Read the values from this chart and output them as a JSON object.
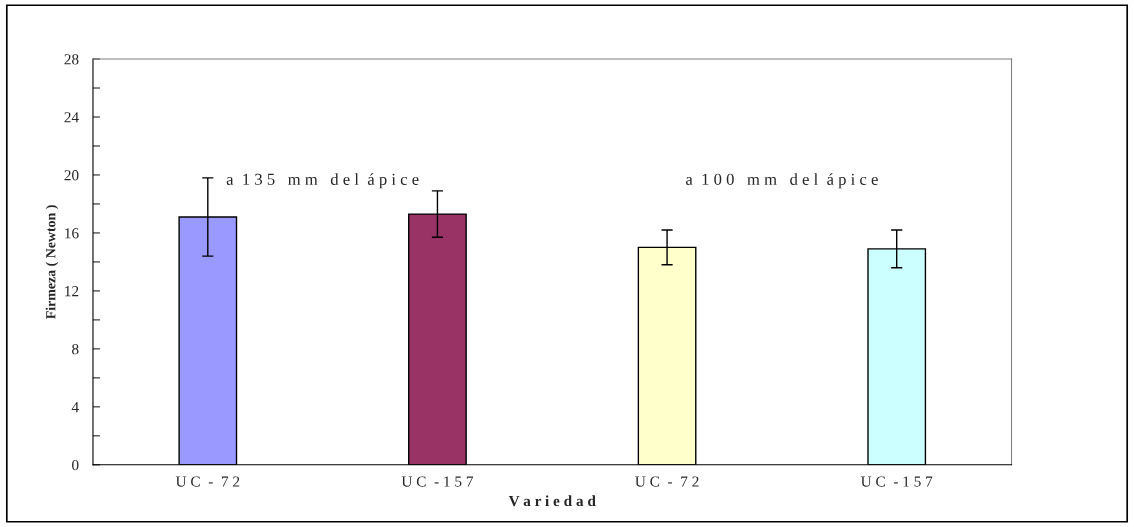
{
  "chart_data": {
    "type": "bar",
    "xlabel": "V a r i e d a d",
    "ylabel": "Firmeza ( Newton )",
    "categories": [
      "U C  -  7 2",
      "U C  - 1 5 7",
      "U C  -  7 2",
      "U C  - 1 5 7"
    ],
    "values": [
      17.1,
      17.3,
      15.0,
      14.9
    ],
    "colors": [
      "#9999ff",
      "#993366",
      "#ffffcc",
      "#ccffff"
    ],
    "errors": [
      2.7,
      1.6,
      1.2,
      1.3
    ],
    "ylim": [
      0,
      28
    ],
    "yticks": [
      0,
      {
        "value": 2,
        "label": null
      },
      4,
      {
        "value": 6,
        "label": null
      },
      8,
      {
        "value": 10,
        "label": null
      },
      12,
      {
        "value": 14,
        "label": null
      },
      16,
      {
        "value": 18,
        "label": null
      },
      20,
      {
        "value": 22,
        "label": null
      },
      24,
      {
        "value": 26,
        "label": null
      },
      28
    ],
    "annotations": [
      "a  1 3 5   m m   d e l  á p i c e",
      "a  1 0 0   m m   d e l  á p i c e"
    ],
    "grid": false,
    "legend": false
  }
}
